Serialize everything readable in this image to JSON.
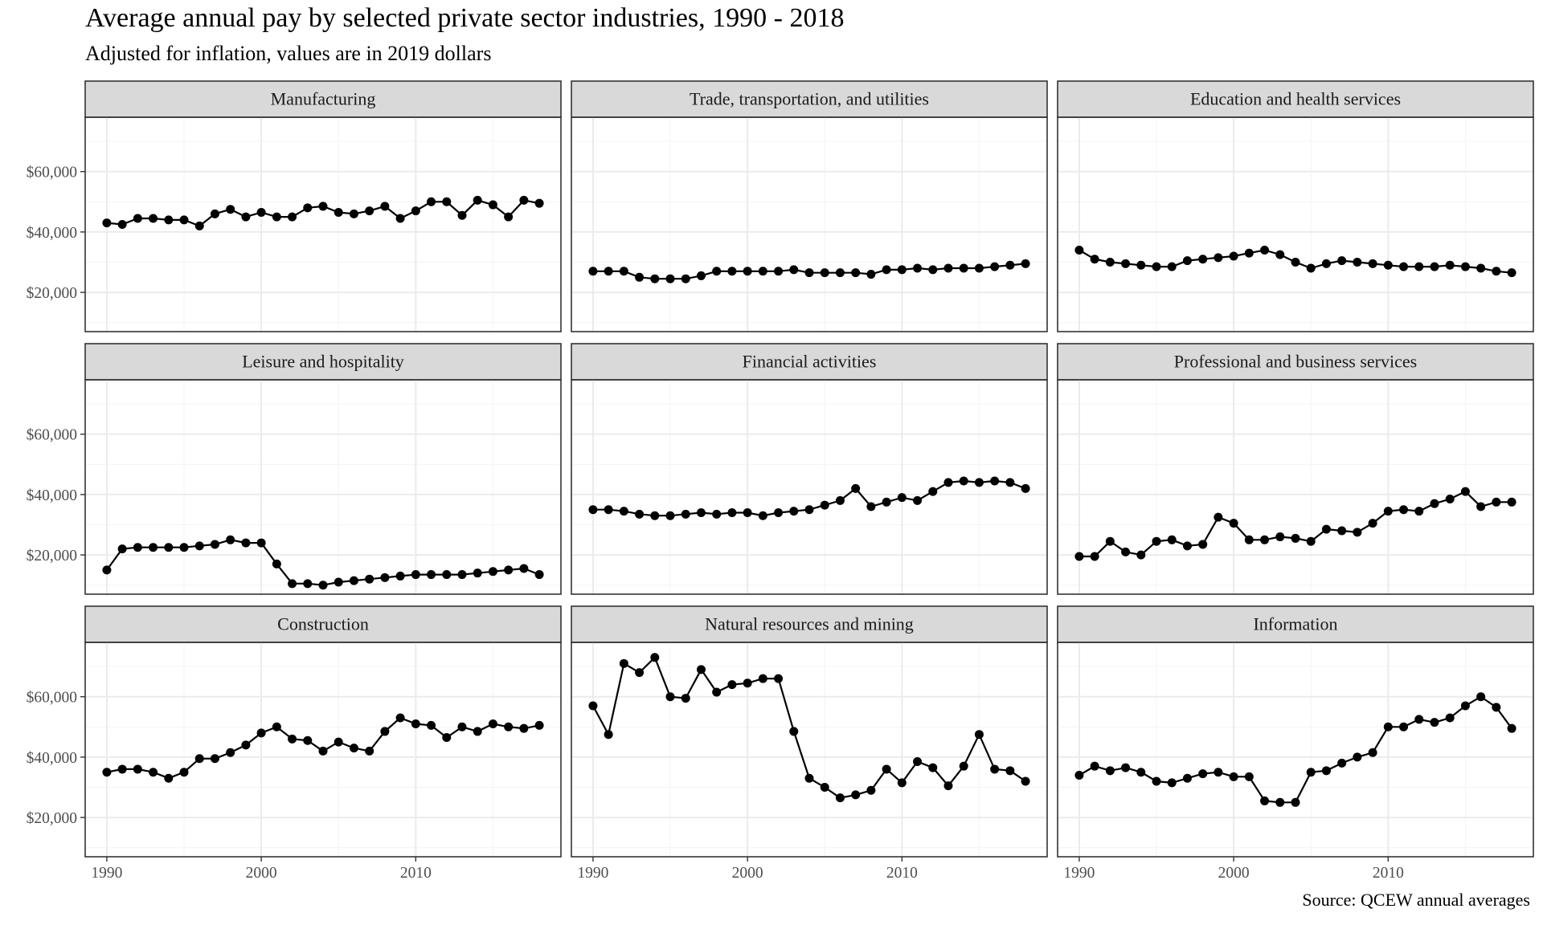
{
  "title": "Average annual pay by selected private sector industries, 1990 - 2018",
  "subtitle": "Adjusted for inflation, values are in 2019 dollars",
  "caption": "Source: QCEW annual averages",
  "colors": {
    "strip_fill": "#d9d9d9",
    "panel_border": "#333333",
    "grid_major": "#ebebeb",
    "grid_minor": "#f5f5f5",
    "series": "#000000"
  },
  "chart_data": {
    "type": "line",
    "facet_layout": "3x3 grid, shared x and y axes",
    "markers": true,
    "grid": true,
    "xlabel": "",
    "ylabel": "",
    "xlim": [
      1988.6,
      2019.4
    ],
    "ylim": [
      7000,
      78000
    ],
    "x_ticks": [
      1990,
      2000,
      2010
    ],
    "x_tick_labels": [
      "1990",
      "2000",
      "2010"
    ],
    "y_ticks": [
      20000,
      40000,
      60000
    ],
    "y_tick_labels": [
      "$20,000",
      "$40,000",
      "$60,000"
    ],
    "x": [
      1990,
      1991,
      1992,
      1993,
      1994,
      1995,
      1996,
      1997,
      1998,
      1999,
      2000,
      2001,
      2002,
      2003,
      2004,
      2005,
      2006,
      2007,
      2008,
      2009,
      2010,
      2011,
      2012,
      2013,
      2014,
      2015,
      2016,
      2017,
      2018
    ],
    "panels": [
      {
        "name": "Manufacturing",
        "values": [
          43000,
          42500,
          44500,
          44500,
          44000,
          44000,
          42000,
          46000,
          47500,
          45000,
          46500,
          45000,
          45000,
          48000,
          48500,
          46500,
          46000,
          47000,
          48500,
          44500,
          47000,
          50000,
          50000,
          45500,
          50500,
          49000,
          45000,
          50500,
          49500
        ]
      },
      {
        "name": "Trade, transportation, and utilities",
        "values": [
          27000,
          27000,
          27000,
          25000,
          24500,
          24500,
          24500,
          25500,
          27000,
          27000,
          27000,
          27000,
          27000,
          27500,
          26500,
          26500,
          26500,
          26500,
          26000,
          27500,
          27500,
          28000,
          27500,
          28000,
          28000,
          28000,
          28500,
          29000,
          29500
        ]
      },
      {
        "name": "Education and health services",
        "values": [
          34000,
          31000,
          30000,
          29500,
          29000,
          28500,
          28500,
          30500,
          31000,
          31500,
          32000,
          33000,
          34000,
          32500,
          30000,
          28000,
          29500,
          30500,
          30000,
          29500,
          29000,
          28500,
          28500,
          28500,
          29000,
          28500,
          28000,
          27000,
          26500
        ]
      },
      {
        "name": "Leisure and hospitality",
        "values": [
          15000,
          22000,
          22500,
          22500,
          22500,
          22500,
          23000,
          23500,
          25000,
          24000,
          24000,
          17000,
          10500,
          10500,
          10000,
          11000,
          11500,
          12000,
          12500,
          13000,
          13500,
          13500,
          13500,
          13500,
          14000,
          14500,
          15000,
          15500,
          13500
        ]
      },
      {
        "name": "Financial activities",
        "values": [
          35000,
          35000,
          34500,
          33500,
          33000,
          33000,
          33500,
          34000,
          33500,
          34000,
          34000,
          33000,
          34000,
          34500,
          35000,
          36500,
          38000,
          42000,
          36000,
          37500,
          39000,
          38000,
          41000,
          44000,
          44500,
          44000,
          44500,
          44000,
          42000
        ]
      },
      {
        "name": "Professional and business services",
        "values": [
          19500,
          19500,
          24500,
          21000,
          20000,
          24500,
          25000,
          23000,
          23500,
          32500,
          30500,
          25000,
          25000,
          26000,
          25500,
          24500,
          28500,
          28000,
          27500,
          30500,
          34500,
          35000,
          34500,
          37000,
          38500,
          41000,
          36000,
          37500,
          37500
        ]
      },
      {
        "name": "Construction",
        "values": [
          35000,
          36000,
          36000,
          35000,
          33000,
          35000,
          39500,
          39500,
          41500,
          44000,
          48000,
          50000,
          46000,
          45500,
          42000,
          45000,
          43000,
          42000,
          48500,
          53000,
          51000,
          50500,
          46500,
          50000,
          48500,
          51000,
          50000,
          49500,
          50500
        ]
      },
      {
        "name": "Natural resources and mining",
        "values": [
          57000,
          47500,
          71000,
          68000,
          73000,
          60000,
          59500,
          69000,
          61500,
          64000,
          64500,
          66000,
          66000,
          48500,
          33000,
          30000,
          26500,
          27500,
          29000,
          36000,
          31500,
          38500,
          36500,
          30500,
          37000,
          47500,
          36000,
          35500,
          32000
        ]
      },
      {
        "name": "Information",
        "values": [
          34000,
          37000,
          35500,
          36500,
          35000,
          32000,
          31500,
          33000,
          34500,
          35000,
          33500,
          33500,
          25500,
          25000,
          25000,
          35000,
          35500,
          38000,
          40000,
          41500,
          50000,
          50000,
          52500,
          51500,
          53000,
          57000,
          60000,
          56500,
          49500
        ]
      }
    ]
  }
}
